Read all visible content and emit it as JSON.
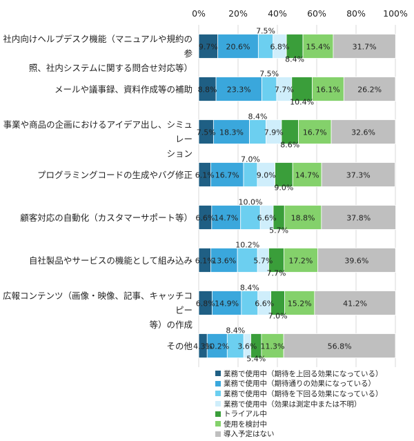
{
  "colors": [
    "#1f5f84",
    "#3aa7dc",
    "#6ccff0",
    "#cfeefb",
    "#3a9e3a",
    "#84d16b",
    "#bfbfbf"
  ],
  "chart_data": {
    "type": "bar",
    "orientation": "horizontal",
    "stacked": true,
    "xlim": [
      0,
      100
    ],
    "x_ticks": [
      "0%",
      "20%",
      "40%",
      "60%",
      "80%",
      "100%"
    ],
    "grid": true,
    "legend_position": "bottom-right",
    "categories": [
      [
        "社内向けヘルプデスク機能（マニュアルや規約の参",
        "照、社内システムに関する問合せ対応等）"
      ],
      [
        "メールや議事録、資料作成等の補助"
      ],
      [
        "事業や商品の企画におけるアイデア出し、シミュレー",
        "ション"
      ],
      [
        "プログラミングコードの生成やバグ修正"
      ],
      [
        "顧客対応の自動化（カスタマーサポート等）"
      ],
      [
        "自社製品やサービスの機能として組み込み"
      ],
      [
        "広報コンテンツ（画像・映像、記事、キャッチコピー",
        "等）の作成"
      ],
      [
        "その他"
      ]
    ],
    "series": [
      {
        "name": "業務で使用中（期待を上回る効果になっている）",
        "values": [
          9.7,
          8.8,
          7.5,
          6.1,
          6.6,
          6.1,
          6.8,
          4.3
        ]
      },
      {
        "name": "業務で使用中（期待通りの効果になっている）",
        "values": [
          20.6,
          23.3,
          18.3,
          16.7,
          14.7,
          13.6,
          14.9,
          10.2
        ]
      },
      {
        "name": "業務で使用中（期待を下回る効果になっている）",
        "values": [
          7.5,
          7.5,
          8.4,
          7.0,
          10.0,
          10.2,
          8.4,
          8.4
        ]
      },
      {
        "name": "業務で使用中（効果は測定中または不明）",
        "values": [
          6.8,
          7.7,
          7.9,
          9.0,
          6.6,
          5.7,
          6.6,
          3.6
        ]
      },
      {
        "name": "トライアル中",
        "values": [
          8.4,
          10.4,
          8.6,
          9.0,
          5.7,
          7.7,
          7.0,
          5.4
        ]
      },
      {
        "name": "使用を検討中",
        "values": [
          15.4,
          16.1,
          16.7,
          14.7,
          18.8,
          17.2,
          15.2,
          11.3
        ]
      },
      {
        "name": "導入予定はない",
        "values": [
          31.7,
          26.2,
          32.6,
          37.3,
          37.8,
          39.6,
          41.2,
          56.8
        ]
      }
    ],
    "labels": [
      [
        "9.7%",
        "20.6%",
        "7.5%",
        "6.8%",
        "8.4%",
        "15.4%",
        "31.7%"
      ],
      [
        "8.8%",
        "23.3%",
        "7.5%",
        "7.7%",
        "10.4%",
        "16.1%",
        "26.2%"
      ],
      [
        "7.5%",
        "18.3%",
        "8.4%",
        "7.9%",
        "8.6%",
        "16.7%",
        "32.6%"
      ],
      [
        "6.1%",
        "16.7%",
        "7.0%",
        "9.0%",
        "9.0%",
        "14.7%",
        "37.3%"
      ],
      [
        "6.6%",
        "14.7%",
        "10.0%",
        "6.6%",
        "5.7%",
        "18.8%",
        "37.8%"
      ],
      [
        "6.1%",
        "13.6%",
        "10.2%",
        "5.7%",
        "7.7%",
        "17.2%",
        "39.6%"
      ],
      [
        "6.8%",
        "14.9%",
        "8.4%",
        "6.6%",
        "7.0%",
        "15.2%",
        "41.2%"
      ],
      [
        "4.3%",
        "10.2%",
        "8.4%",
        "3.6%",
        "5.4%",
        "11.3%",
        "56.8%"
      ]
    ]
  }
}
